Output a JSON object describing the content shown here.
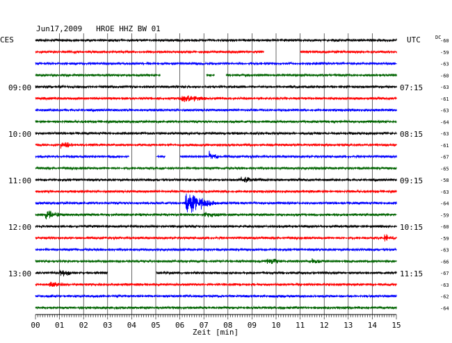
{
  "chart_data": {
    "type": "line",
    "title": "Jun17,2009   HROE HHZ BW 01",
    "left_label": "CES",
    "right_label": "UTC",
    "dc_header": "DC",
    "xlabel": "Zeit [min]",
    "xlim": [
      0,
      15
    ],
    "x_ticks": [
      "00",
      "01",
      "02",
      "03",
      "04",
      "05",
      "06",
      "07",
      "08",
      "09",
      "10",
      "11",
      "12",
      "13",
      "14",
      "15"
    ],
    "colors": {
      "black": "#000000",
      "red": "#ff0000",
      "blue": "#0000ff",
      "green": "#006400"
    },
    "traces": [
      {
        "dc": "-60",
        "color": "black",
        "local": "",
        "utc": "",
        "gaps": [],
        "events": []
      },
      {
        "dc": "-59",
        "color": "red",
        "local": "",
        "utc": "",
        "gaps": [
          [
            9.5,
            11.0
          ]
        ],
        "events": []
      },
      {
        "dc": "-63",
        "color": "blue",
        "local": "",
        "utc": "",
        "gaps": [],
        "events": []
      },
      {
        "dc": "-60",
        "color": "green",
        "local": "",
        "utc": "",
        "gaps": [
          [
            5.2,
            7.1
          ],
          [
            7.45,
            7.9
          ]
        ],
        "events": []
      },
      {
        "dc": "-63",
        "color": "black",
        "local": "09:00",
        "utc": "07:15",
        "gaps": [],
        "events": []
      },
      {
        "dc": "-61",
        "color": "red",
        "local": "",
        "utc": "",
        "gaps": [],
        "events": [
          {
            "t": 6.0,
            "amp": 5,
            "dur": 1.2
          }
        ]
      },
      {
        "dc": "-63",
        "color": "blue",
        "local": "",
        "utc": "",
        "gaps": [],
        "events": []
      },
      {
        "dc": "-64",
        "color": "green",
        "local": "",
        "utc": "",
        "gaps": [],
        "events": []
      },
      {
        "dc": "-63",
        "color": "black",
        "local": "10:00",
        "utc": "08:15",
        "gaps": [],
        "events": []
      },
      {
        "dc": "-61",
        "color": "red",
        "local": "",
        "utc": "",
        "gaps": [],
        "events": [
          {
            "t": 1.0,
            "amp": 6,
            "dur": 0.6
          }
        ]
      },
      {
        "dc": "-67",
        "color": "blue",
        "local": "",
        "utc": "",
        "gaps": [
          [
            3.9,
            5.0
          ],
          [
            5.4,
            6.0
          ]
        ],
        "events": [
          {
            "t": 7.2,
            "amp": 8,
            "dur": 0.4
          }
        ]
      },
      {
        "dc": "-65",
        "color": "green",
        "local": "",
        "utc": "",
        "gaps": [],
        "events": []
      },
      {
        "dc": "-58",
        "color": "black",
        "local": "11:00",
        "utc": "09:15",
        "gaps": [],
        "events": [
          {
            "t": 8.5,
            "amp": 4,
            "dur": 1.0
          }
        ]
      },
      {
        "dc": "-63",
        "color": "red",
        "local": "",
        "utc": "",
        "gaps": [],
        "events": []
      },
      {
        "dc": "-64",
        "color": "blue",
        "local": "",
        "utc": "",
        "gaps": [],
        "events": [
          {
            "t": 6.2,
            "amp": 16,
            "dur": 1.4
          }
        ]
      },
      {
        "dc": "-59",
        "color": "green",
        "local": "",
        "utc": "",
        "gaps": [],
        "events": [
          {
            "t": 0.4,
            "amp": 6,
            "dur": 0.8
          },
          {
            "t": 7.0,
            "amp": 3,
            "dur": 0.8
          }
        ]
      },
      {
        "dc": "-60",
        "color": "black",
        "local": "12:00",
        "utc": "10:15",
        "gaps": [],
        "events": []
      },
      {
        "dc": "-59",
        "color": "red",
        "local": "",
        "utc": "",
        "gaps": [],
        "events": [
          {
            "t": 14.5,
            "amp": 5,
            "dur": 0.5
          }
        ]
      },
      {
        "dc": "-63",
        "color": "blue",
        "local": "",
        "utc": "",
        "gaps": [],
        "events": []
      },
      {
        "dc": "-66",
        "color": "green",
        "local": "",
        "utc": "",
        "gaps": [],
        "events": [
          {
            "t": 9.6,
            "amp": 4,
            "dur": 0.8
          },
          {
            "t": 11.5,
            "amp": 3,
            "dur": 0.6
          }
        ]
      },
      {
        "dc": "-67",
        "color": "black",
        "local": "13:00",
        "utc": "11:15",
        "gaps": [
          [
            3.0,
            5.0
          ]
        ],
        "events": [
          {
            "t": 1.0,
            "amp": 6,
            "dur": 0.6
          }
        ]
      },
      {
        "dc": "-63",
        "color": "red",
        "local": "",
        "utc": "",
        "gaps": [],
        "events": [
          {
            "t": 0.5,
            "amp": 4,
            "dur": 0.8
          }
        ]
      },
      {
        "dc": "-62",
        "color": "blue",
        "local": "",
        "utc": "",
        "gaps": [],
        "events": []
      },
      {
        "dc": "-64",
        "color": "green",
        "local": "",
        "utc": "",
        "gaps": [],
        "events": []
      }
    ]
  }
}
